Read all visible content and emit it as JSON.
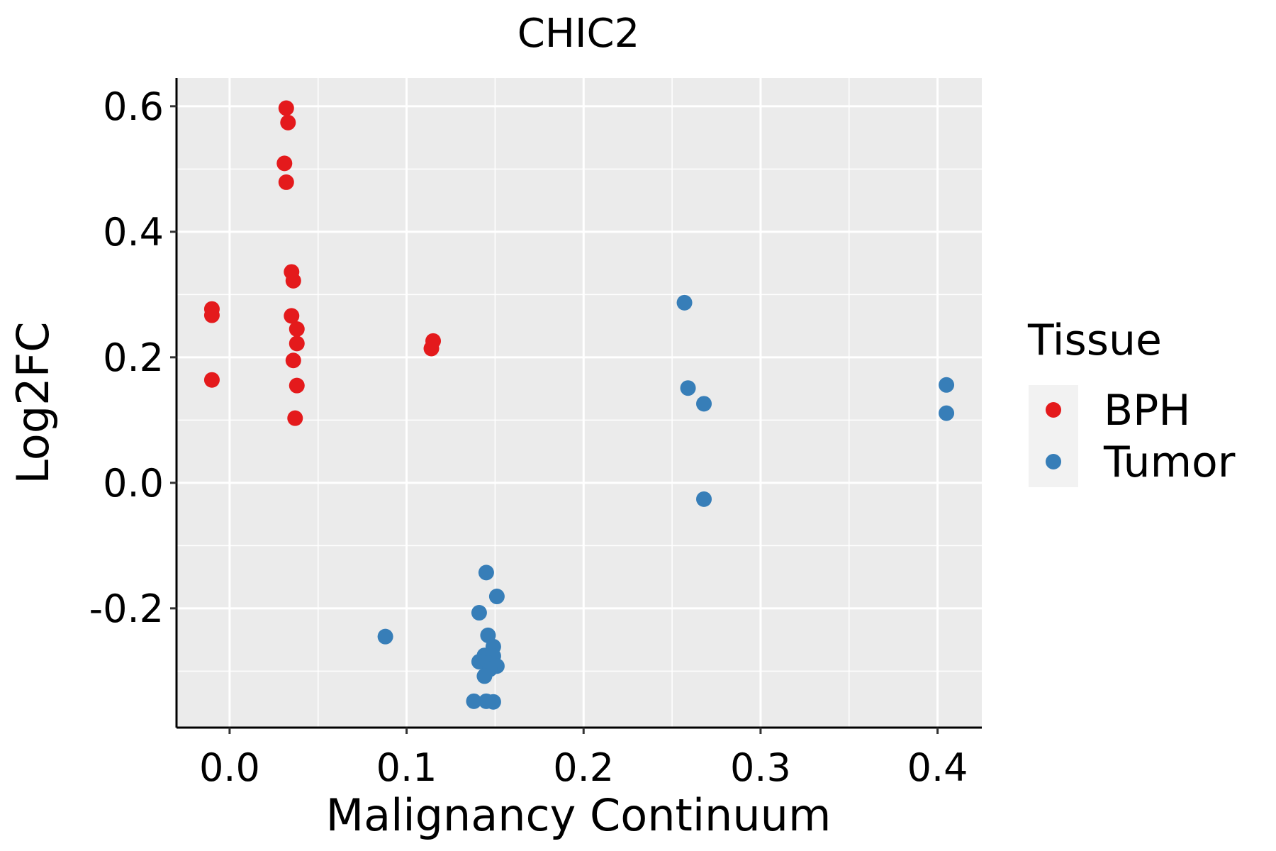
{
  "chart_data": {
    "type": "scatter",
    "title": "CHIC2",
    "xlabel": "Malignancy Continuum",
    "ylabel": "Log2FC",
    "xlim": [
      -0.03,
      0.425
    ],
    "ylim": [
      -0.39,
      0.645
    ],
    "x_ticks": [
      0.0,
      0.1,
      0.2,
      0.3,
      0.4
    ],
    "x_tick_labels": [
      "0.0",
      "0.1",
      "0.2",
      "0.3",
      "0.4"
    ],
    "y_ticks": [
      -0.2,
      0.0,
      0.2,
      0.4,
      0.6
    ],
    "y_tick_labels": [
      "-0.2",
      "0.0",
      "0.2",
      "0.4",
      "0.6"
    ],
    "grid": true,
    "legend": {
      "title": "Tissue",
      "position": "right"
    },
    "series": [
      {
        "name": "BPH",
        "color": "#e41a1c",
        "points": [
          [
            -0.01,
            0.277
          ],
          [
            -0.01,
            0.267
          ],
          [
            -0.01,
            0.164
          ],
          [
            0.032,
            0.597
          ],
          [
            0.033,
            0.574
          ],
          [
            0.031,
            0.509
          ],
          [
            0.032,
            0.479
          ],
          [
            0.035,
            0.336
          ],
          [
            0.036,
            0.322
          ],
          [
            0.035,
            0.266
          ],
          [
            0.038,
            0.245
          ],
          [
            0.038,
            0.222
          ],
          [
            0.036,
            0.195
          ],
          [
            0.038,
            0.155
          ],
          [
            0.037,
            0.103
          ],
          [
            0.115,
            0.226
          ],
          [
            0.114,
            0.214
          ]
        ]
      },
      {
        "name": "Tumor",
        "color": "#377eb8",
        "points": [
          [
            0.257,
            0.287
          ],
          [
            0.259,
            0.151
          ],
          [
            0.268,
            0.126
          ],
          [
            0.268,
            -0.026
          ],
          [
            0.405,
            0.156
          ],
          [
            0.405,
            0.111
          ],
          [
            0.088,
            -0.245
          ],
          [
            0.145,
            -0.143
          ],
          [
            0.151,
            -0.181
          ],
          [
            0.141,
            -0.207
          ],
          [
            0.146,
            -0.243
          ],
          [
            0.149,
            -0.261
          ],
          [
            0.144,
            -0.275
          ],
          [
            0.149,
            -0.276
          ],
          [
            0.141,
            -0.285
          ],
          [
            0.146,
            -0.287
          ],
          [
            0.151,
            -0.292
          ],
          [
            0.147,
            -0.297
          ],
          [
            0.144,
            -0.308
          ],
          [
            0.138,
            -0.348
          ],
          [
            0.145,
            -0.348
          ],
          [
            0.149,
            -0.349
          ]
        ]
      }
    ]
  }
}
